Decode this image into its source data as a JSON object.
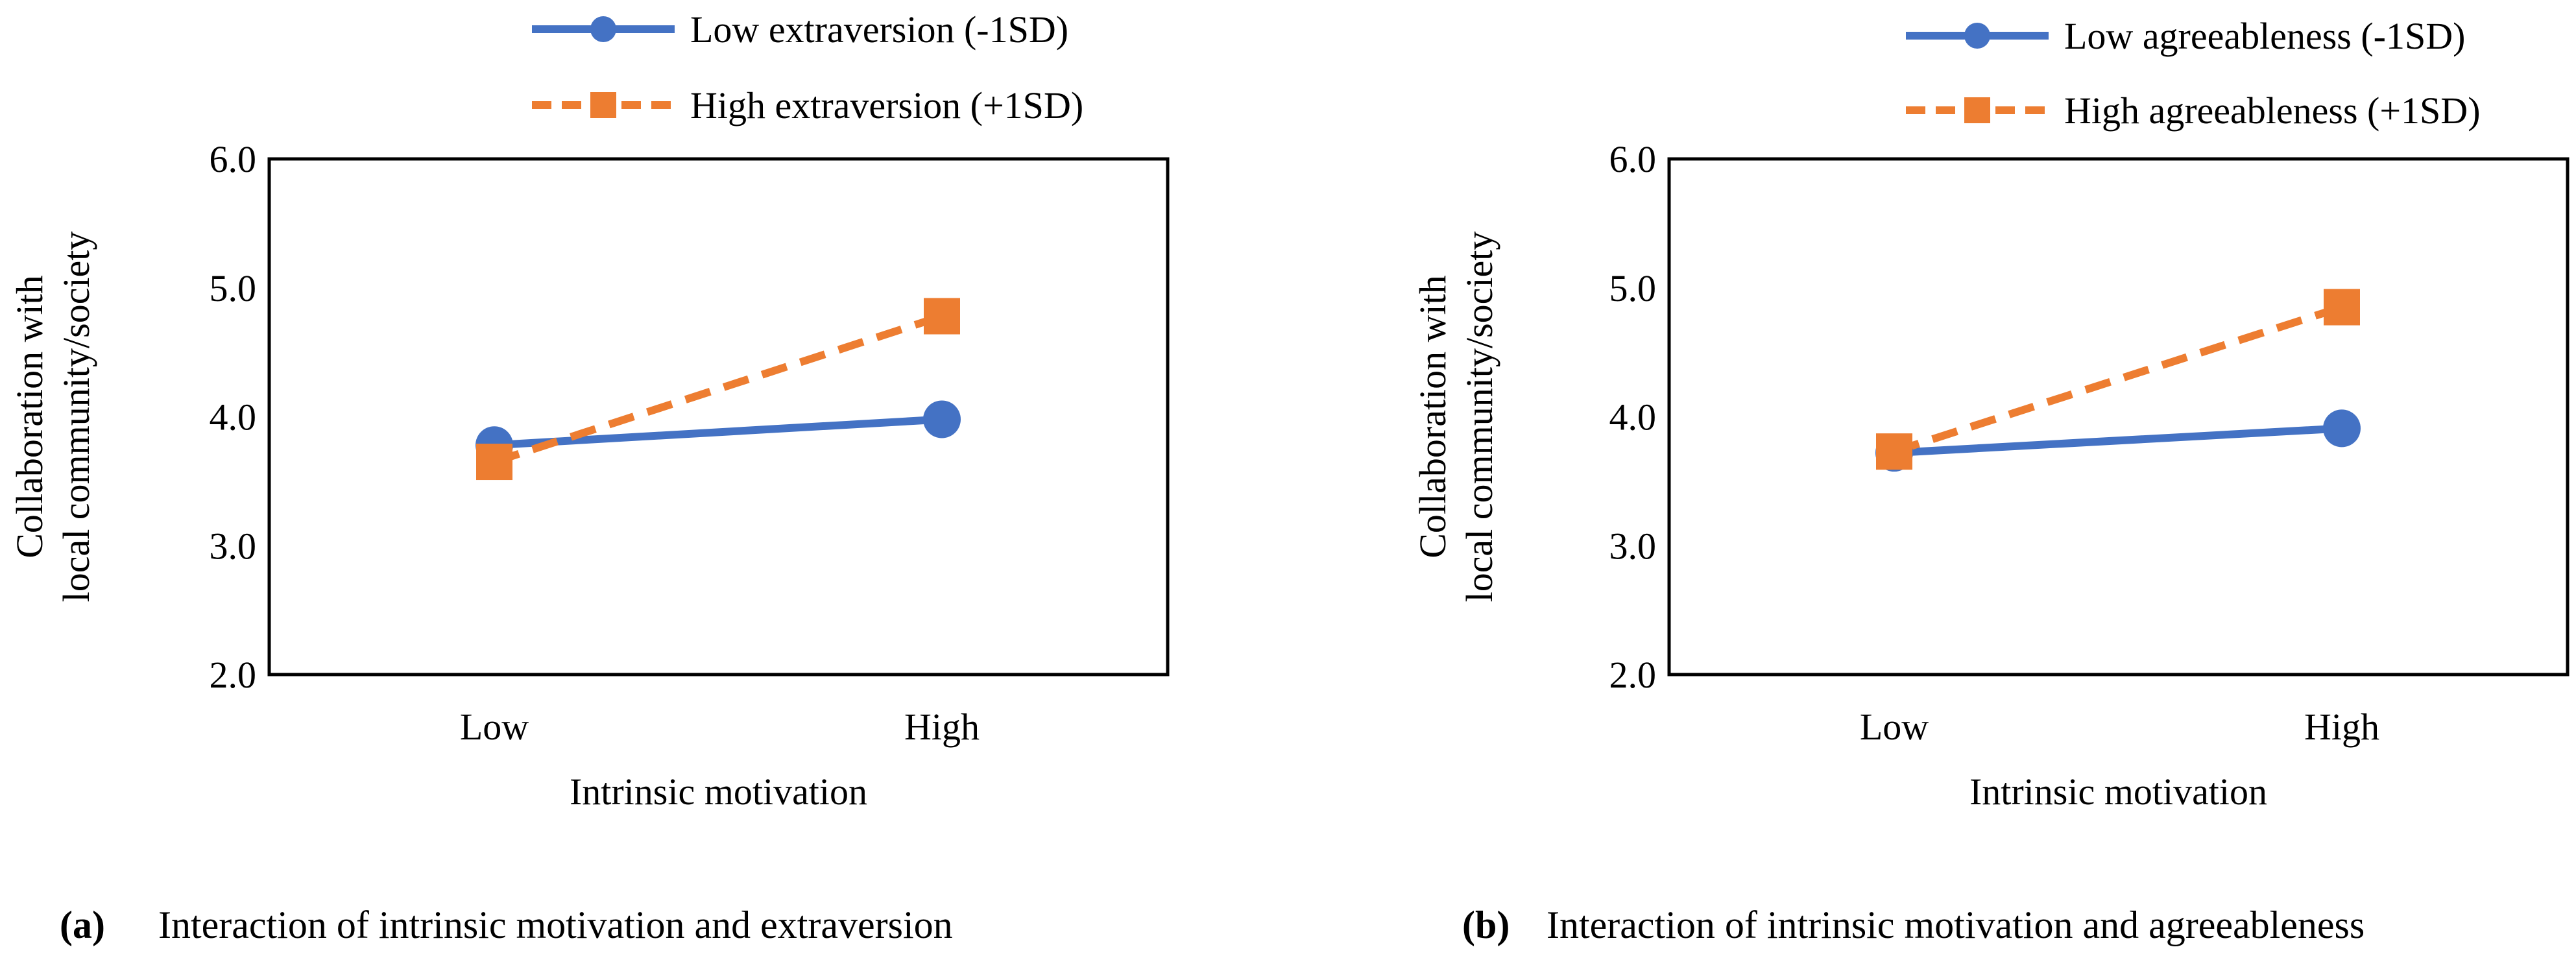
{
  "figure": {
    "subfigures": [
      {
        "caption_tag": "a",
        "caption_text": "Interaction of intrinsic motivation and extraversion"
      },
      {
        "caption_tag": "b",
        "caption_text": "Interaction of intrinsic motivation and agreeableness"
      }
    ]
  },
  "colors": {
    "low_series": "#4472C4",
    "high_series": "#ED7D31",
    "axis": "#000000",
    "text": "#000000"
  },
  "chart_data": [
    {
      "type": "line",
      "categories": [
        "Low",
        "High"
      ],
      "xlabel": "Intrinsic motivation",
      "ylabel_lines": [
        "Collaboration with",
        "local community/society"
      ],
      "ylim": [
        2.0,
        6.0
      ],
      "yticks": [
        "2.0",
        "3.0",
        "4.0",
        "5.0",
        "6.0"
      ],
      "grid": false,
      "legend_position": "top-right",
      "series": [
        {
          "name": "Low extraversion (-1SD)",
          "values": [
            3.78,
            3.98
          ],
          "marker": "circle",
          "dash": "solid"
        },
        {
          "name": "High extraversion (+1SD)",
          "values": [
            3.65,
            4.78
          ],
          "marker": "square",
          "dash": "dashed"
        }
      ]
    },
    {
      "type": "line",
      "categories": [
        "Low",
        "High"
      ],
      "xlabel": "Intrinsic motivation",
      "ylabel_lines": [
        "Collaboration with",
        "local community/society"
      ],
      "ylim": [
        2.0,
        6.0
      ],
      "yticks": [
        "2.0",
        "3.0",
        "4.0",
        "5.0",
        "6.0"
      ],
      "grid": false,
      "legend_position": "top-right",
      "series": [
        {
          "name": "Low agreeableness (-1SD)",
          "values": [
            3.72,
            3.91
          ],
          "marker": "circle",
          "dash": "solid"
        },
        {
          "name": "High agreeableness (+1SD)",
          "values": [
            3.73,
            4.85
          ],
          "marker": "square",
          "dash": "dashed"
        }
      ]
    }
  ]
}
